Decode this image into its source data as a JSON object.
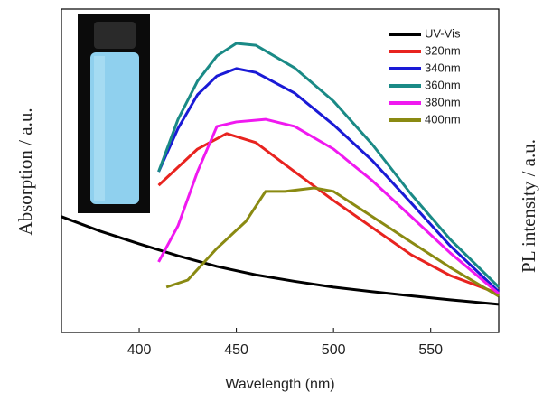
{
  "chart_data": {
    "type": "line",
    "xlabel": "Wavelength (nm)",
    "ylabel": "Absorption / a.u.",
    "y2label": "PL intensity / a.u.",
    "xlim": [
      360,
      585
    ],
    "xticks": [
      400,
      450,
      500,
      550
    ],
    "ylim": [
      0,
      100
    ],
    "legend": "upper right",
    "series": [
      {
        "name": "UV-Vis",
        "color": "#000000",
        "x": [
          360,
          380,
          400,
          420,
          440,
          460,
          480,
          500,
          520,
          540,
          560,
          585
        ],
        "values": [
          35.8,
          31.3,
          27.4,
          23.7,
          20.4,
          17.8,
          15.8,
          14.0,
          12.6,
          11.3,
          10.1,
          8.7
        ]
      },
      {
        "name": "320nm",
        "color": "#e8231f",
        "x": [
          410,
          430,
          445,
          460,
          480,
          500,
          520,
          540,
          560,
          585
        ],
        "values": [
          45.5,
          56.7,
          61.5,
          58.7,
          49.7,
          40.8,
          32.4,
          24,
          17.6,
          12
        ]
      },
      {
        "name": "340nm",
        "color": "#1a1ad6",
        "x": [
          410,
          420,
          430,
          440,
          450,
          460,
          480,
          500,
          520,
          540,
          560,
          585
        ],
        "values": [
          49.7,
          63.1,
          73.5,
          79.3,
          81.6,
          80.4,
          74,
          64.2,
          53.1,
          40,
          26.8,
          12.6
        ]
      },
      {
        "name": "360nm",
        "color": "#1a8a86",
        "x": [
          410,
          420,
          430,
          440,
          450,
          460,
          480,
          500,
          520,
          540,
          560,
          585
        ],
        "values": [
          49.7,
          65.9,
          77.7,
          85.5,
          89.4,
          88.8,
          81.8,
          71.5,
          58.1,
          42.7,
          28.8,
          14
        ]
      },
      {
        "name": "380nm",
        "color": "#f019f0",
        "x": [
          410,
          420,
          430,
          440,
          450,
          465,
          480,
          500,
          520,
          540,
          560,
          585
        ],
        "values": [
          21.8,
          33,
          49.7,
          63.7,
          65.1,
          65.9,
          63.7,
          56.7,
          46.9,
          35.8,
          24.6,
          12
        ]
      },
      {
        "name": "400nm",
        "color": "#8a8a12",
        "x": [
          414,
          425,
          440,
          455,
          465,
          475,
          490,
          500,
          520,
          540,
          560,
          585
        ],
        "values": [
          14,
          16.2,
          26,
          34.4,
          43.6,
          43.6,
          44.7,
          43.6,
          35.8,
          27.9,
          20.1,
          11.2
        ]
      }
    ]
  }
}
